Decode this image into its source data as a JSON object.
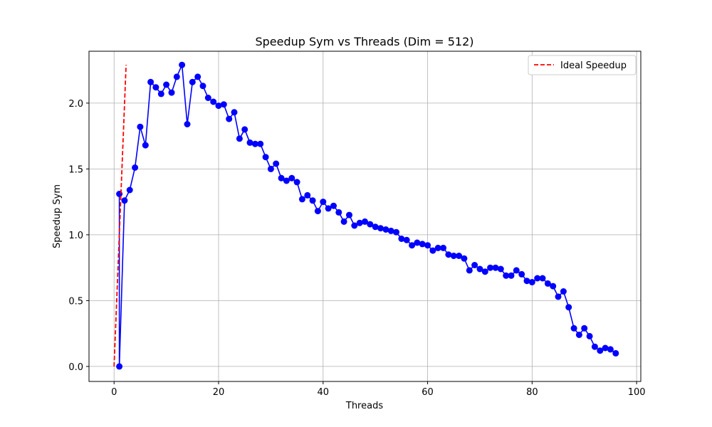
{
  "chart_data": {
    "type": "line",
    "title": "Speedup Sym vs Threads (Dim = 512)",
    "xlabel": "Threads",
    "ylabel": "Speedup Sym",
    "xlim": [
      -4.8,
      100.8
    ],
    "ylim": [
      -0.114,
      2.394
    ],
    "xticks": [
      0,
      20,
      40,
      60,
      80,
      100
    ],
    "yticks": [
      0.0,
      0.5,
      1.0,
      1.5,
      2.0
    ],
    "xtick_labels": [
      "0",
      "20",
      "40",
      "60",
      "80",
      "100"
    ],
    "ytick_labels": [
      "0.0",
      "0.5",
      "1.0",
      "1.5",
      "2.0"
    ],
    "grid": true,
    "legend_position": "upper-right",
    "series": [
      {
        "name": "",
        "color": "#0000ff",
        "style": "solid",
        "marker": "circle",
        "x": [
          1,
          1,
          2,
          3,
          4,
          5,
          6,
          7,
          8,
          9,
          10,
          11,
          12,
          13,
          14,
          15,
          16,
          17,
          18,
          19,
          20,
          21,
          22,
          23,
          24,
          25,
          26,
          27,
          28,
          29,
          30,
          31,
          32,
          33,
          34,
          35,
          36,
          37,
          38,
          39,
          40,
          41,
          42,
          43,
          44,
          45,
          46,
          47,
          48,
          49,
          50,
          51,
          52,
          53,
          54,
          55,
          56,
          57,
          58,
          59,
          60,
          61,
          62,
          63,
          64,
          65,
          66,
          67,
          68,
          69,
          70,
          71,
          72,
          73,
          74,
          75,
          76,
          77,
          78,
          79,
          80,
          81,
          82,
          83,
          84,
          85,
          86,
          87,
          88,
          89,
          90,
          91,
          92,
          93,
          94,
          95,
          96
        ],
        "y": [
          1.31,
          0.0,
          1.26,
          1.34,
          1.51,
          1.82,
          1.68,
          2.16,
          2.12,
          2.07,
          2.14,
          2.08,
          2.2,
          2.29,
          1.84,
          2.16,
          2.2,
          2.13,
          2.04,
          2.01,
          1.98,
          1.99,
          1.88,
          1.93,
          1.73,
          1.8,
          1.7,
          1.69,
          1.69,
          1.59,
          1.5,
          1.54,
          1.43,
          1.41,
          1.43,
          1.4,
          1.27,
          1.3,
          1.26,
          1.18,
          1.25,
          1.2,
          1.22,
          1.17,
          1.1,
          1.15,
          1.07,
          1.09,
          1.1,
          1.08,
          1.06,
          1.05,
          1.04,
          1.03,
          1.02,
          0.97,
          0.96,
          0.92,
          0.94,
          0.93,
          0.92,
          0.88,
          0.9,
          0.9,
          0.85,
          0.84,
          0.84,
          0.82,
          0.73,
          0.77,
          0.74,
          0.72,
          0.75,
          0.75,
          0.74,
          0.69,
          0.69,
          0.73,
          0.7,
          0.65,
          0.64,
          0.67,
          0.67,
          0.63,
          0.61,
          0.53,
          0.57,
          0.45,
          0.29,
          0.24,
          0.29,
          0.23,
          0.15,
          0.12,
          0.14,
          0.13,
          0.1
        ]
      },
      {
        "name": "Ideal Speedup",
        "color": "#ff0000",
        "style": "dashed",
        "marker": "none",
        "x": [
          0,
          2.3
        ],
        "y": [
          0.0,
          2.29
        ]
      }
    ]
  }
}
